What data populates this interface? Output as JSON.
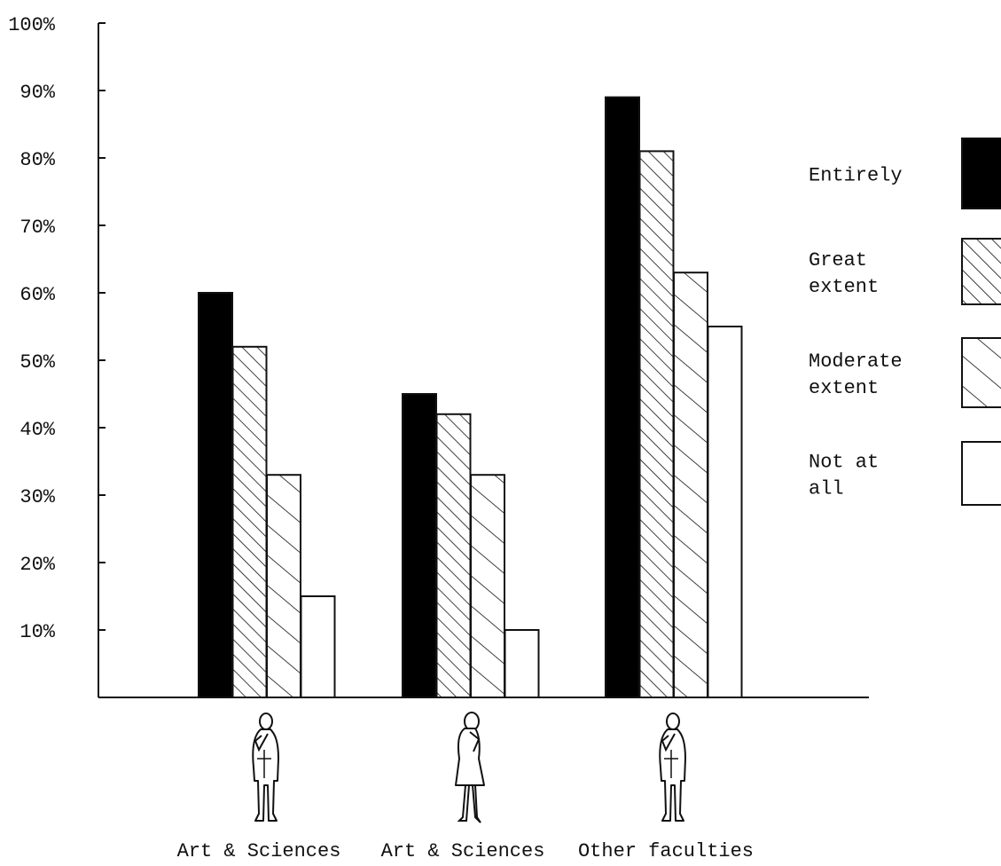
{
  "chart_data": {
    "type": "bar",
    "categories": [
      "Art & Sciences",
      "Art & Sciences",
      "Other faculties"
    ],
    "category_icons": [
      "man-figure-icon",
      "woman-figure-icon",
      "man-figure-icon"
    ],
    "series": [
      {
        "name": "Entirely",
        "values": [
          60,
          45,
          89
        ],
        "pattern": "solid",
        "color": "#000000"
      },
      {
        "name": "Great extent",
        "values": [
          52,
          42,
          81
        ],
        "pattern": "dense-hatch",
        "color": "#000000"
      },
      {
        "name": "Moderate extent",
        "values": [
          33,
          33,
          63
        ],
        "pattern": "sparse-hatch",
        "color": "#000000"
      },
      {
        "name": "Not at all",
        "values": [
          15,
          10,
          55
        ],
        "pattern": "empty",
        "color": "#000000"
      }
    ],
    "ylim": [
      0,
      100
    ],
    "yticks": [
      10,
      20,
      30,
      40,
      50,
      60,
      70,
      80,
      90,
      100
    ],
    "ytick_labels": [
      "10%",
      "20%",
      "30%",
      "40%",
      "50%",
      "60%",
      "70%",
      "80%",
      "90%",
      "100%"
    ],
    "grid": false,
    "legend_position": "right",
    "title": "",
    "xlabel": "",
    "ylabel": ""
  }
}
